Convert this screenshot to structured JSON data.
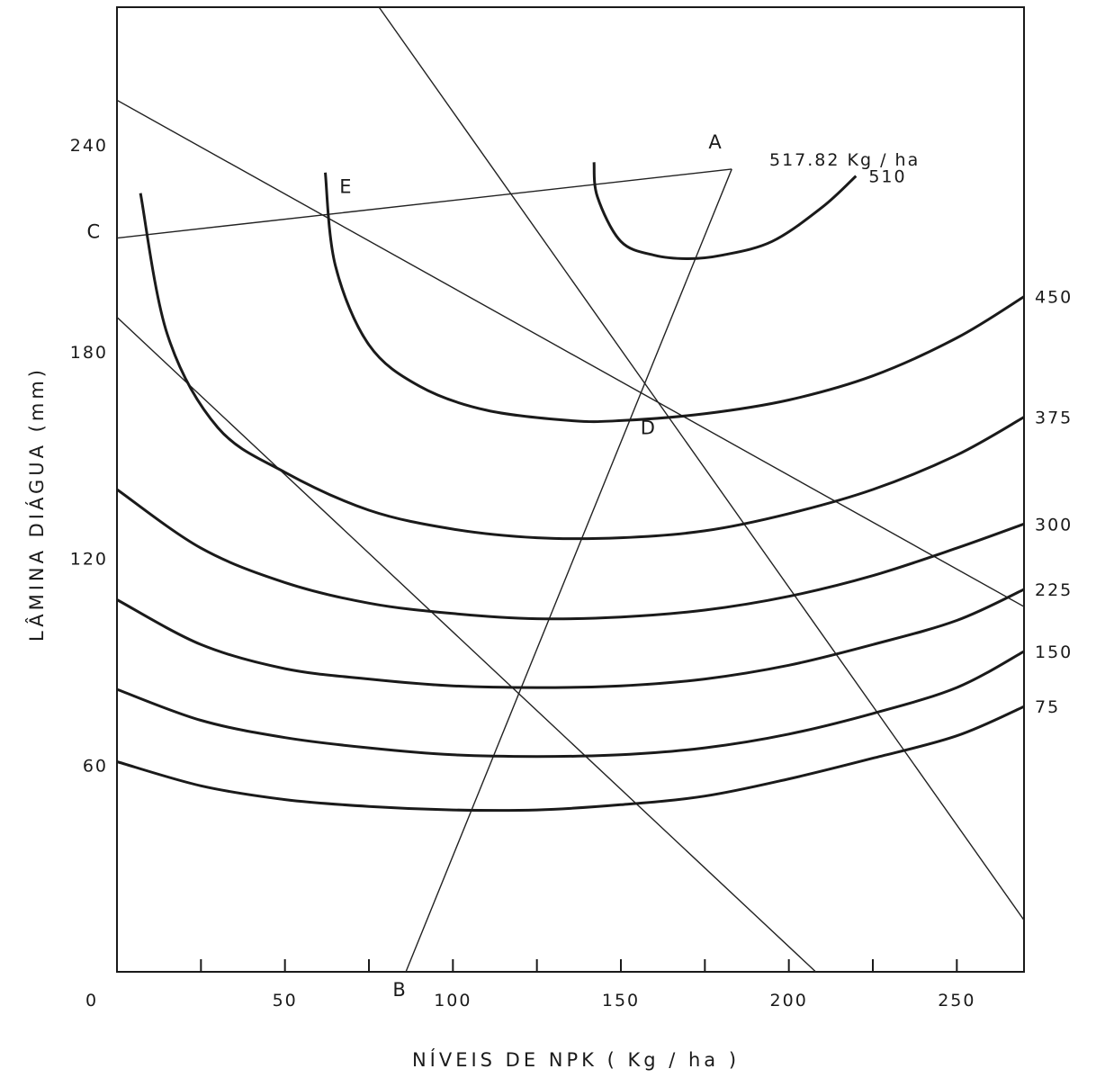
{
  "chart_data": {
    "type": "line",
    "xlabel": "NÍVEIS DE NPK  ( Kg / ha )",
    "ylabel": "LÂMINA DIÁGUA  (mm)",
    "xlim": [
      0,
      270
    ],
    "ylim": [
      0,
      280
    ],
    "x_ticks": [
      0,
      50,
      100,
      150,
      200,
      250
    ],
    "x_ticks_minor": [
      25,
      75,
      125,
      175,
      225
    ],
    "y_ticks": [
      60,
      120,
      180,
      240
    ],
    "grid": false,
    "isoquants": [
      {
        "name": "75",
        "points": [
          [
            0,
            61
          ],
          [
            25,
            54
          ],
          [
            50,
            50
          ],
          [
            75,
            48
          ],
          [
            100,
            47
          ],
          [
            125,
            47
          ],
          [
            150,
            48.5
          ],
          [
            175,
            51
          ],
          [
            200,
            56
          ],
          [
            225,
            62
          ],
          [
            250,
            68.5
          ],
          [
            270,
            77
          ]
        ]
      },
      {
        "name": "150",
        "points": [
          [
            0,
            82
          ],
          [
            25,
            73
          ],
          [
            50,
            68
          ],
          [
            75,
            65
          ],
          [
            100,
            63
          ],
          [
            125,
            62.5
          ],
          [
            150,
            63
          ],
          [
            175,
            65
          ],
          [
            200,
            69
          ],
          [
            225,
            75
          ],
          [
            250,
            82.5
          ],
          [
            270,
            93
          ]
        ]
      },
      {
        "name": "225",
        "points": [
          [
            0,
            108
          ],
          [
            25,
            95
          ],
          [
            50,
            88
          ],
          [
            75,
            85
          ],
          [
            100,
            83
          ],
          [
            125,
            82.5
          ],
          [
            150,
            83
          ],
          [
            175,
            85
          ],
          [
            200,
            89
          ],
          [
            225,
            95
          ],
          [
            250,
            102
          ],
          [
            270,
            111
          ]
        ]
      },
      {
        "name": "300",
        "points": [
          [
            0,
            140
          ],
          [
            25,
            123
          ],
          [
            50,
            113
          ],
          [
            75,
            107
          ],
          [
            100,
            104
          ],
          [
            125,
            102.5
          ],
          [
            150,
            103
          ],
          [
            175,
            105
          ],
          [
            200,
            109
          ],
          [
            225,
            115
          ],
          [
            250,
            123
          ],
          [
            270,
            130
          ]
        ]
      },
      {
        "name": "375",
        "points": [
          [
            7,
            226
          ],
          [
            15,
            185
          ],
          [
            30,
            158
          ],
          [
            50,
            145
          ],
          [
            75,
            134
          ],
          [
            100,
            128.5
          ],
          [
            125,
            126
          ],
          [
            150,
            126
          ],
          [
            175,
            128
          ],
          [
            200,
            133
          ],
          [
            225,
            140
          ],
          [
            250,
            150
          ],
          [
            270,
            161
          ]
        ]
      },
      {
        "name": "450",
        "points": [
          [
            62,
            232
          ],
          [
            65,
            205
          ],
          [
            75,
            182
          ],
          [
            90,
            170
          ],
          [
            110,
            163
          ],
          [
            135,
            160
          ],
          [
            150,
            160
          ],
          [
            175,
            162
          ],
          [
            200,
            166
          ],
          [
            225,
            173
          ],
          [
            250,
            184
          ],
          [
            270,
            196
          ]
        ]
      },
      {
        "name": "510",
        "points": [
          [
            142,
            235
          ],
          [
            143,
            225
          ],
          [
            150,
            212
          ],
          [
            160,
            208
          ],
          [
            170,
            207
          ],
          [
            180,
            208
          ],
          [
            195,
            212
          ],
          [
            210,
            222
          ],
          [
            220,
            231
          ]
        ]
      }
    ],
    "budget_lines": [
      {
        "points": [
          [
            0,
            190
          ],
          [
            208,
            0
          ]
        ]
      },
      {
        "points": [
          [
            0,
            253
          ],
          [
            270,
            106
          ]
        ]
      },
      {
        "points": [
          [
            78,
            280
          ],
          [
            270,
            15
          ]
        ]
      }
    ],
    "expansion_path": {
      "points": [
        [
          86,
          0
        ],
        [
          183,
          233
        ]
      ]
    },
    "ridge_line": {
      "points": [
        [
          0,
          213
        ],
        [
          183,
          233
        ]
      ]
    },
    "points": [
      {
        "label": "A",
        "x": 178,
        "y": 239
      },
      {
        "label": "B",
        "x": 84,
        "y": -7
      },
      {
        "label": "C",
        "x": -7,
        "y": 213
      },
      {
        "label": "D",
        "x": 158,
        "y": 156
      },
      {
        "label": "E",
        "x": 68,
        "y": 226
      }
    ],
    "annotations": {
      "max_yield": "517.82  Kg / ha"
    }
  }
}
